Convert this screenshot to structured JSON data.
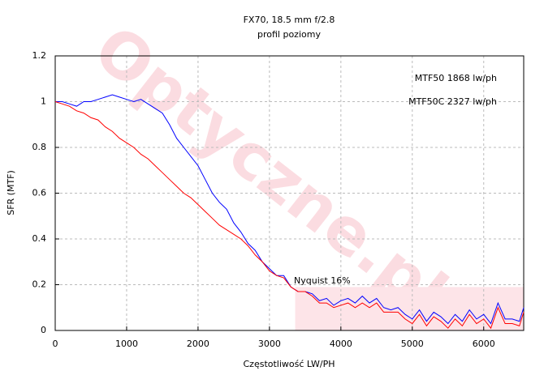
{
  "chart_data": {
    "type": "line",
    "title": "FX70, 18.5 mm f/2.8",
    "subtitle": "profil poziomy",
    "x_label": "Częstotliwość LW/PH",
    "y_label": "SFR (MTF)",
    "annotations": [
      "MTF50 1868 lw/ph",
      "MTF50C 2327 lw/ph",
      "Nyquist 16%"
    ],
    "watermark": "Optyczne.pl",
    "xlim": [
      0,
      6560
    ],
    "ylim": [
      0,
      1.2
    ],
    "xticks": [
      0,
      1000,
      2000,
      3000,
      4000,
      5000,
      6000
    ],
    "yticks": [
      0,
      0.2,
      0.4,
      0.6,
      0.8,
      1,
      1.2
    ],
    "grid": true,
    "shaded_region": {
      "xlim": [
        3360,
        6560
      ],
      "ylim": [
        0,
        0.19
      ],
      "color": "#fde4e8"
    },
    "x": [
      0,
      100,
      200,
      300,
      400,
      500,
      600,
      700,
      800,
      900,
      1000,
      1100,
      1200,
      1300,
      1400,
      1500,
      1600,
      1700,
      1800,
      1900,
      2000,
      2100,
      2200,
      2300,
      2400,
      2500,
      2600,
      2700,
      2800,
      2900,
      3000,
      3100,
      3200,
      3300,
      3400,
      3500,
      3600,
      3700,
      3800,
      3900,
      4000,
      4100,
      4200,
      4300,
      4400,
      4500,
      4600,
      4700,
      4800,
      4900,
      5000,
      5100,
      5200,
      5300,
      5400,
      5500,
      5600,
      5700,
      5800,
      5900,
      6000,
      6100,
      6200,
      6300,
      6400,
      6500,
      6560
    ],
    "series": [
      {
        "color": "#0000ff",
        "values": [
          1.0,
          1.0,
          0.99,
          0.98,
          1.0,
          1.0,
          1.01,
          1.02,
          1.03,
          1.02,
          1.01,
          1.0,
          1.01,
          0.99,
          0.97,
          0.95,
          0.9,
          0.84,
          0.8,
          0.76,
          0.72,
          0.66,
          0.6,
          0.56,
          0.53,
          0.47,
          0.43,
          0.38,
          0.35,
          0.3,
          0.27,
          0.24,
          0.24,
          0.19,
          0.17,
          0.17,
          0.16,
          0.13,
          0.14,
          0.11,
          0.13,
          0.14,
          0.12,
          0.15,
          0.12,
          0.14,
          0.1,
          0.09,
          0.1,
          0.07,
          0.05,
          0.09,
          0.04,
          0.08,
          0.06,
          0.03,
          0.07,
          0.04,
          0.09,
          0.05,
          0.07,
          0.03,
          0.12,
          0.05,
          0.05,
          0.04,
          0.1
        ]
      },
      {
        "color": "#ff0000",
        "values": [
          1.0,
          0.99,
          0.98,
          0.96,
          0.95,
          0.93,
          0.92,
          0.89,
          0.87,
          0.84,
          0.82,
          0.8,
          0.77,
          0.75,
          0.72,
          0.69,
          0.66,
          0.63,
          0.6,
          0.58,
          0.55,
          0.52,
          0.49,
          0.46,
          0.44,
          0.42,
          0.4,
          0.37,
          0.33,
          0.3,
          0.26,
          0.24,
          0.23,
          0.19,
          0.17,
          0.17,
          0.15,
          0.12,
          0.12,
          0.1,
          0.11,
          0.12,
          0.1,
          0.12,
          0.1,
          0.12,
          0.08,
          0.08,
          0.08,
          0.05,
          0.03,
          0.07,
          0.02,
          0.06,
          0.04,
          0.01,
          0.05,
          0.02,
          0.07,
          0.03,
          0.05,
          0.01,
          0.1,
          0.03,
          0.03,
          0.02,
          0.08
        ]
      }
    ]
  }
}
